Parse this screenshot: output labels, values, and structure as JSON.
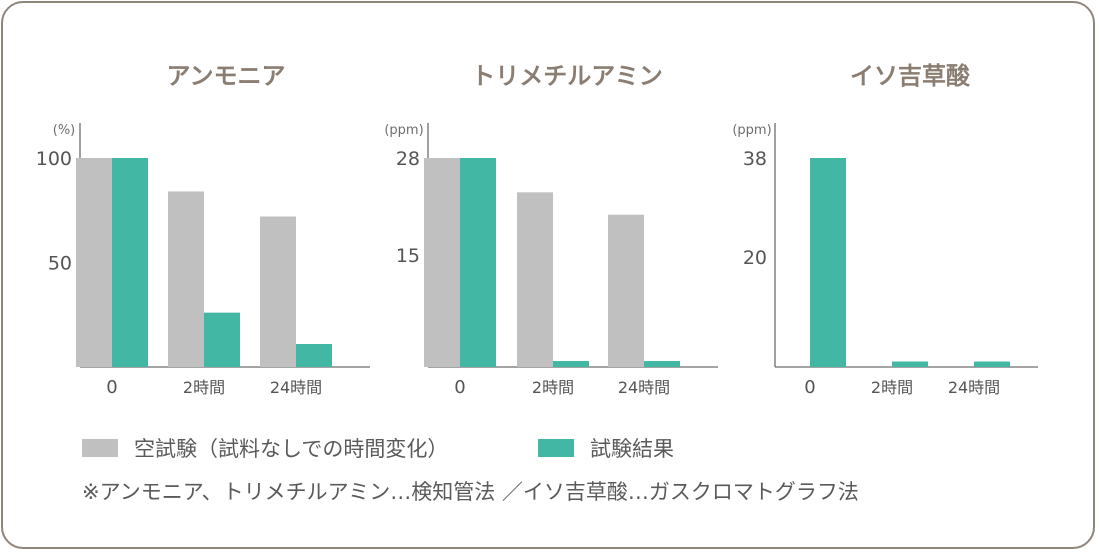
{
  "colors": {
    "blank": "#c0c0c0",
    "result": "#42b8a4",
    "title": "#8a7d71",
    "axis": "#6e6e6e"
  },
  "chart_data": [
    {
      "type": "bar",
      "title": "アンモニア",
      "unit": "(%)",
      "categories": [
        "0",
        "2時間",
        "24時間"
      ],
      "yticks": [
        100,
        50
      ],
      "ylim": [
        0,
        104
      ],
      "series": [
        {
          "name": "空試験（試料なしでの時間変化）",
          "key": "blank",
          "values": [
            100,
            84,
            72
          ]
        },
        {
          "name": "試験結果",
          "key": "result",
          "values": [
            100,
            26,
            11
          ]
        }
      ]
    },
    {
      "type": "bar",
      "title": "トリメチルアミン",
      "unit": "(ppm)",
      "categories": [
        "0",
        "2時間",
        "24時間"
      ],
      "yticks": [
        28,
        15
      ],
      "ylim": [
        0,
        29
      ],
      "series": [
        {
          "name": "空試験（試料なしでの時間変化）",
          "key": "blank",
          "values": [
            28,
            23.4,
            20.4
          ]
        },
        {
          "name": "試験結果",
          "key": "result",
          "values": [
            28,
            0.8,
            0.8
          ]
        }
      ]
    },
    {
      "type": "bar",
      "title": "イソ吉草酸",
      "unit": "(ppm)",
      "categories": [
        "0",
        "2時間",
        "24時間"
      ],
      "yticks": [
        38,
        20
      ],
      "ylim": [
        0,
        39
      ],
      "series": [
        {
          "name": "空試験（試料なしでの時間変化）",
          "key": "blank",
          "values": [
            0,
            0,
            0
          ]
        },
        {
          "name": "試験結果",
          "key": "result",
          "values": [
            38,
            1,
            1
          ]
        }
      ]
    }
  ],
  "legend": {
    "blank_label": "空試験（試料なしでの時間変化）",
    "result_label": "試験結果"
  },
  "note": "※アンモニア、トリメチルアミン…検知管法 ／イソ吉草酸…ガスクロマトグラフ法"
}
